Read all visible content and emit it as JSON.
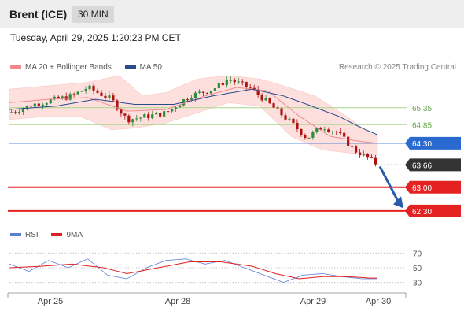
{
  "header": {
    "title": "Brent (ICE)",
    "timeframe": "30 MIN"
  },
  "datetime": "Tuesday, April 29, 2025 1:20:23 PM CET",
  "legend_main": [
    {
      "label": "MA 20 + Bollinger Bands",
      "color": "#f28a8a"
    },
    {
      "label": "MA 50",
      "color": "#2b4a8c"
    }
  ],
  "credit": "Research © 2025 Trading Central",
  "legend_rsi": [
    {
      "label": "RSI",
      "color": "#5b7fd6"
    },
    {
      "label": "9MA",
      "color": "#e02020"
    }
  ],
  "colors": {
    "up_candle": "#2e8b3a",
    "down_candle": "#b01010",
    "band_fill": "#fde0de",
    "arrow": "#2a5bab",
    "current_price_bg": "#333333",
    "pivot_blue": "#2a6ad0",
    "support_red": "#e52222",
    "resistance_green": "#a7d68a"
  },
  "chart_data": {
    "type": "candlestick",
    "x_ticks": [
      "Apr 25",
      "Apr 28",
      "Apr 29",
      "Apr 30"
    ],
    "y_range": [
      61.9,
      66.3
    ],
    "levels": [
      {
        "value": 65.35,
        "label": "65.35",
        "kind": "resistance"
      },
      {
        "value": 64.85,
        "label": "64.85",
        "kind": "resistance"
      },
      {
        "value": 64.3,
        "label": "64.30",
        "kind": "pivot"
      },
      {
        "value": 63.66,
        "label": "63.66",
        "kind": "current"
      },
      {
        "value": 63.0,
        "label": "63.00",
        "kind": "support"
      },
      {
        "value": 62.3,
        "label": "62.30",
        "kind": "support"
      }
    ],
    "price_path": [
      [
        0,
        65.2
      ],
      [
        6,
        65.45
      ],
      [
        12,
        65.6
      ],
      [
        16,
        65.7
      ],
      [
        20,
        65.95
      ],
      [
        26,
        65.6
      ],
      [
        30,
        65.0
      ],
      [
        33,
        65.05
      ],
      [
        40,
        65.2
      ],
      [
        46,
        65.7
      ],
      [
        52,
        65.9
      ],
      [
        56,
        66.2
      ],
      [
        62,
        65.9
      ],
      [
        68,
        65.3
      ],
      [
        72,
        64.9
      ],
      [
        76,
        64.45
      ],
      [
        80,
        64.8
      ],
      [
        84,
        64.6
      ],
      [
        88,
        64.1
      ],
      [
        92,
        63.85
      ],
      [
        94,
        63.66
      ]
    ],
    "ma20": [
      [
        0,
        65.5
      ],
      [
        10,
        65.6
      ],
      [
        20,
        65.65
      ],
      [
        30,
        65.25
      ],
      [
        40,
        65.3
      ],
      [
        50,
        65.7
      ],
      [
        58,
        65.95
      ],
      [
        66,
        65.85
      ],
      [
        74,
        65.1
      ],
      [
        82,
        64.5
      ],
      [
        90,
        64.35
      ],
      [
        94,
        64.3
      ]
    ],
    "ma50": [
      [
        0,
        65.3
      ],
      [
        12,
        65.4
      ],
      [
        22,
        65.6
      ],
      [
        32,
        65.45
      ],
      [
        42,
        65.45
      ],
      [
        52,
        65.7
      ],
      [
        62,
        65.9
      ],
      [
        70,
        65.7
      ],
      [
        76,
        65.45
      ],
      [
        84,
        65.1
      ],
      [
        90,
        64.75
      ],
      [
        94,
        64.55
      ]
    ],
    "bb_upper": [
      [
        0,
        65.9
      ],
      [
        10,
        66.0
      ],
      [
        20,
        66.1
      ],
      [
        28,
        66.3
      ],
      [
        34,
        65.7
      ],
      [
        40,
        65.8
      ],
      [
        48,
        66.2
      ],
      [
        56,
        66.3
      ],
      [
        64,
        66.2
      ],
      [
        70,
        66.0
      ],
      [
        78,
        65.7
      ],
      [
        86,
        65.1
      ],
      [
        92,
        64.6
      ],
      [
        94,
        64.5
      ]
    ],
    "bb_lower": [
      [
        0,
        65.0
      ],
      [
        10,
        65.1
      ],
      [
        18,
        65.1
      ],
      [
        26,
        64.7
      ],
      [
        32,
        64.75
      ],
      [
        40,
        64.9
      ],
      [
        48,
        65.2
      ],
      [
        56,
        65.5
      ],
      [
        64,
        65.4
      ],
      [
        72,
        64.5
      ],
      [
        80,
        64.1
      ],
      [
        88,
        64.0
      ],
      [
        94,
        63.85
      ]
    ],
    "rsi_panel": {
      "y_ticks": [
        "70",
        "50",
        "30"
      ],
      "y_range": [
        20,
        80
      ],
      "rsi": [
        [
          0,
          55
        ],
        [
          5,
          45
        ],
        [
          10,
          60
        ],
        [
          15,
          50
        ],
        [
          20,
          62
        ],
        [
          25,
          40
        ],
        [
          30,
          35
        ],
        [
          35,
          50
        ],
        [
          40,
          60
        ],
        [
          45,
          62
        ],
        [
          50,
          55
        ],
        [
          55,
          60
        ],
        [
          60,
          50
        ],
        [
          65,
          40
        ],
        [
          70,
          30
        ],
        [
          75,
          40
        ],
        [
          80,
          42
        ],
        [
          85,
          38
        ],
        [
          90,
          35
        ],
        [
          94,
          35
        ]
      ],
      "ma9": [
        [
          0,
          50
        ],
        [
          8,
          52
        ],
        [
          16,
          55
        ],
        [
          24,
          50
        ],
        [
          30,
          42
        ],
        [
          38,
          50
        ],
        [
          46,
          58
        ],
        [
          54,
          58
        ],
        [
          62,
          52
        ],
        [
          68,
          42
        ],
        [
          74,
          35
        ],
        [
          80,
          38
        ],
        [
          86,
          38
        ],
        [
          92,
          36
        ],
        [
          94,
          36
        ]
      ]
    }
  }
}
